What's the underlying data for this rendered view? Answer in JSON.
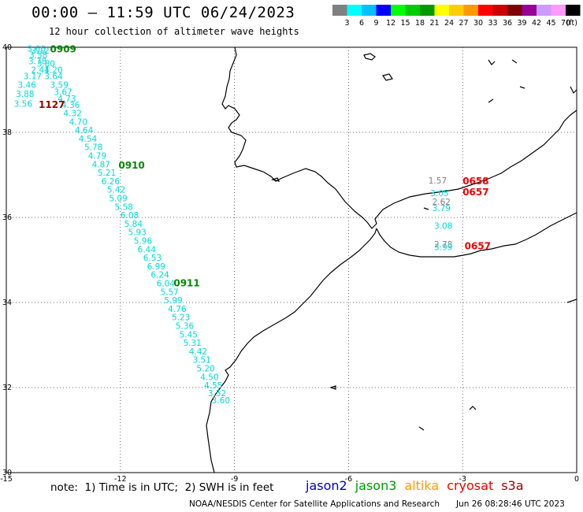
{
  "header": {
    "title": "00:00 – 11:59 UTC 06/24/2023",
    "subtitle": "12 hour collection of altimeter wave heights"
  },
  "colorbar": {
    "unit": "(ft)",
    "levels": [
      "3",
      "6",
      "9",
      "12",
      "15",
      "18",
      "21",
      "24",
      "27",
      "30",
      "33",
      "36",
      "39",
      "42",
      "45",
      "70"
    ],
    "colors": [
      "#808080",
      "#00ffff",
      "#00bfff",
      "#0000ff",
      "#00ff00",
      "#00cc00",
      "#009900",
      "#ffff00",
      "#ffcc00",
      "#ff9900",
      "#ff0000",
      "#cc0000",
      "#800000",
      "#990099",
      "#cc99ff",
      "#ff99ff",
      "#000000"
    ]
  },
  "axes": {
    "lon_ticks": [
      "-15",
      "-12",
      "-9",
      "-6",
      "-3",
      "0"
    ],
    "lat_ticks": [
      "40",
      "38",
      "36",
      "34",
      "32",
      "30"
    ],
    "lon_range": [
      -15,
      0
    ],
    "lat_range": [
      30,
      40
    ],
    "grid": true
  },
  "track": {
    "color": "#00d8d8",
    "points": [
      {
        "lon": -14.45,
        "lat": 39.9,
        "v": "3.66"
      },
      {
        "lon": -14.35,
        "lat": 39.85,
        "v": "3.12"
      },
      {
        "lon": -14.4,
        "lat": 39.75,
        "v": "3.58"
      },
      {
        "lon": -14.42,
        "lat": 39.6,
        "v": "3.78"
      },
      {
        "lon": -14.2,
        "lat": 39.55,
        "v": "3.80"
      },
      {
        "lon": -14.35,
        "lat": 39.4,
        "v": "2.41"
      },
      {
        "lon": -14.0,
        "lat": 39.4,
        "v": "4.20"
      },
      {
        "lon": -14.55,
        "lat": 39.25,
        "v": "3.17"
      },
      {
        "lon": -14.0,
        "lat": 39.25,
        "v": "3.64"
      },
      {
        "lon": -14.7,
        "lat": 39.05,
        "v": "3.46"
      },
      {
        "lon": -13.85,
        "lat": 39.05,
        "v": "3.59"
      },
      {
        "lon": -13.75,
        "lat": 38.88,
        "v": "3.67"
      },
      {
        "lon": -14.75,
        "lat": 38.83,
        "v": "3.88"
      },
      {
        "lon": -13.65,
        "lat": 38.72,
        "v": "4.73"
      },
      {
        "lon": -14.8,
        "lat": 38.6,
        "v": "3.56"
      },
      {
        "lon": -13.55,
        "lat": 38.57,
        "v": "4.36"
      },
      {
        "lon": -13.5,
        "lat": 38.38,
        "v": "4.32"
      },
      {
        "lon": -13.35,
        "lat": 38.18,
        "v": "4.70"
      },
      {
        "lon": -13.2,
        "lat": 37.98,
        "v": "4.64"
      },
      {
        "lon": -13.1,
        "lat": 37.78,
        "v": "4.54"
      },
      {
        "lon": -12.95,
        "lat": 37.58,
        "v": "5.78"
      },
      {
        "lon": -12.85,
        "lat": 37.38,
        "v": "4.79"
      },
      {
        "lon": -12.75,
        "lat": 37.18,
        "v": "4.87"
      },
      {
        "lon": -12.6,
        "lat": 36.98,
        "v": "5.21"
      },
      {
        "lon": -12.5,
        "lat": 36.78,
        "v": "6.26"
      },
      {
        "lon": -12.35,
        "lat": 36.58,
        "v": "5.42"
      },
      {
        "lon": -12.3,
        "lat": 36.38,
        "v": "5.09"
      },
      {
        "lon": -12.15,
        "lat": 36.18,
        "v": "5.58"
      },
      {
        "lon": -12.0,
        "lat": 35.98,
        "v": "6.08"
      },
      {
        "lon": -11.9,
        "lat": 35.78,
        "v": "5.84"
      },
      {
        "lon": -11.8,
        "lat": 35.58,
        "v": "5.93"
      },
      {
        "lon": -11.65,
        "lat": 35.38,
        "v": "5.96"
      },
      {
        "lon": -11.55,
        "lat": 35.18,
        "v": "6.44"
      },
      {
        "lon": -11.4,
        "lat": 34.98,
        "v": "6.53"
      },
      {
        "lon": -11.3,
        "lat": 34.78,
        "v": "6.99"
      },
      {
        "lon": -11.2,
        "lat": 34.58,
        "v": "6.24"
      },
      {
        "lon": -11.05,
        "lat": 34.38,
        "v": "6.04"
      },
      {
        "lon": -10.95,
        "lat": 34.18,
        "v": "5.57"
      },
      {
        "lon": -10.85,
        "lat": 33.98,
        "v": "5.99"
      },
      {
        "lon": -10.75,
        "lat": 33.78,
        "v": "4.76"
      },
      {
        "lon": -10.65,
        "lat": 33.58,
        "v": "5.23"
      },
      {
        "lon": -10.55,
        "lat": 33.38,
        "v": "5.36"
      },
      {
        "lon": -10.45,
        "lat": 33.18,
        "v": "5.45"
      },
      {
        "lon": -10.35,
        "lat": 32.98,
        "v": "5.31"
      },
      {
        "lon": -10.2,
        "lat": 32.78,
        "v": "4.42"
      },
      {
        "lon": -10.1,
        "lat": 32.58,
        "v": "3.51"
      },
      {
        "lon": -10.0,
        "lat": 32.38,
        "v": "5.20"
      },
      {
        "lon": -9.9,
        "lat": 32.18,
        "v": "4.50"
      },
      {
        "lon": -9.8,
        "lat": 31.98,
        "v": "4.55"
      },
      {
        "lon": -9.7,
        "lat": 31.8,
        "v": "3.52"
      },
      {
        "lon": -9.6,
        "lat": 31.63,
        "v": "3.60"
      }
    ]
  },
  "med_points": [
    {
      "lon": -3.9,
      "lat": 36.8,
      "v": "1.57",
      "color": "#808080"
    },
    {
      "lon": -3.85,
      "lat": 36.5,
      "v": "3.05",
      "color": "#00d8d8"
    },
    {
      "lon": -3.8,
      "lat": 36.3,
      "v": "2.62",
      "color": "#808080"
    },
    {
      "lon": -3.8,
      "lat": 36.15,
      "v": "3.79",
      "color": "#00d8d8"
    },
    {
      "lon": -3.75,
      "lat": 35.73,
      "v": "3.08",
      "color": "#00d8d8"
    },
    {
      "lon": -3.75,
      "lat": 35.3,
      "v": "2.78",
      "color": "#808080"
    },
    {
      "lon": -3.75,
      "lat": 35.23,
      "v": "3.99",
      "color": "#00d8d8"
    }
  ],
  "time_labels": [
    {
      "lon": -13.85,
      "lat": 39.88,
      "v": "0909",
      "color": "#008800"
    },
    {
      "lon": -14.15,
      "lat": 38.57,
      "v": "1127",
      "color": "#990000"
    },
    {
      "lon": -12.05,
      "lat": 37.15,
      "v": "0910",
      "color": "#008800"
    },
    {
      "lon": -10.6,
      "lat": 34.38,
      "v": "0911",
      "color": "#008800"
    },
    {
      "lon": -3.0,
      "lat": 36.78,
      "v": "0658",
      "color": "#ee0000"
    },
    {
      "lon": -3.0,
      "lat": 36.52,
      "v": "0657",
      "color": "#ee0000"
    },
    {
      "lon": -2.95,
      "lat": 35.25,
      "v": "0657",
      "color": "#ee0000"
    }
  ],
  "footer": {
    "note": "note:  1) Time is in UTC;  2) SWH is in feet",
    "legend": [
      {
        "name": "jason2",
        "color": "#0000cc"
      },
      {
        "name": "jason3",
        "color": "#009900"
      },
      {
        "name": "altika",
        "color": "#ff9900"
      },
      {
        "name": "cryosat",
        "color": "#ee0000"
      },
      {
        "name": "s3a",
        "color": "#990000"
      }
    ],
    "credit": "NOAA/NESDIS Center for Satellite Applications and Research",
    "timestamp": "Jun 26 08:28:46 UTC 2023"
  }
}
